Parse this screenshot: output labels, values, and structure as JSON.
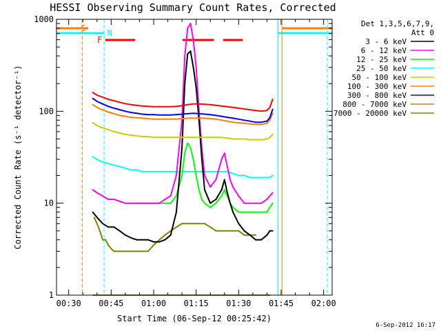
{
  "chart_data": {
    "type": "line",
    "title": "HESSI Observing Summary Count Rates, Corrected",
    "xlabel": "Start Time (06-Sep-12 00:25:42)",
    "ylabel": "Corrected Count Rate (s⁻¹ detector⁻¹)",
    "yscale": "log",
    "ylim": [
      1,
      1000
    ],
    "y_ticks": [
      1,
      10,
      100,
      1000
    ],
    "y_tick_labels": [
      "1",
      "10",
      "100",
      "1000"
    ],
    "xlim": [
      25.7,
      123
    ],
    "x_ticks": [
      30,
      45,
      60,
      75,
      90,
      105,
      120
    ],
    "x_tick_labels": [
      "00:30",
      "00:45",
      "01:00",
      "01:15",
      "01:30",
      "01:45",
      "02:00"
    ],
    "x_unit": "minutes after 00:00 UT, 06-Sep-12",
    "legend_header": [
      "Det 1,3,5,6,7,9,",
      "Att 0"
    ],
    "legend_position": "right",
    "series": [
      {
        "name": "3 - 6 keV",
        "color": "#000000",
        "x": [
          38.5,
          40,
          42,
          44,
          46,
          48,
          50,
          52,
          54,
          56,
          58,
          60,
          62,
          64,
          66,
          68,
          70,
          71,
          72,
          73,
          74,
          75,
          76,
          77,
          78,
          80,
          82,
          84,
          85,
          86,
          87,
          88,
          90,
          92,
          94,
          96,
          98,
          100,
          101,
          102
        ],
        "y": [
          8,
          7,
          6,
          5.5,
          5.5,
          5,
          4.5,
          4.2,
          4,
          4,
          4,
          3.8,
          3.8,
          4,
          4.5,
          8,
          40,
          200,
          420,
          450,
          300,
          180,
          80,
          30,
          14,
          10,
          11,
          14,
          18,
          13,
          10,
          8,
          6,
          5,
          4.5,
          4,
          4,
          4.5,
          5,
          5
        ]
      },
      {
        "name": "6 - 12 keV",
        "color": "#ff00ff",
        "x": [
          38.5,
          40,
          42,
          44,
          46,
          48,
          50,
          52,
          54,
          56,
          58,
          60,
          62,
          64,
          66,
          68,
          70,
          71,
          72,
          73,
          74,
          75,
          76,
          77,
          78,
          80,
          82,
          84,
          85,
          86,
          87,
          88,
          90,
          92,
          94,
          96,
          98,
          100,
          101,
          102
        ],
        "y": [
          14,
          13,
          12,
          11,
          11,
          10.5,
          10,
          10,
          10,
          10,
          10,
          10,
          10,
          11,
          12,
          20,
          80,
          400,
          800,
          900,
          600,
          300,
          100,
          40,
          20,
          15,
          18,
          30,
          35,
          25,
          18,
          15,
          12,
          10,
          10,
          10,
          10,
          11,
          12,
          13
        ]
      },
      {
        "name": "12 - 25 keV",
        "color": "#00ff00",
        "x": [
          38.5,
          40,
          42,
          44,
          46,
          48,
          50,
          52,
          54,
          56,
          58,
          60,
          62,
          64,
          66,
          68,
          70,
          71,
          72,
          73,
          74,
          75,
          76,
          77,
          78,
          80,
          82,
          84,
          85,
          86,
          87,
          88,
          90,
          92,
          94,
          96,
          98,
          100,
          101,
          102
        ],
        "y": [
          14,
          13,
          12,
          11,
          11,
          10.5,
          10,
          10,
          10,
          10,
          10,
          10,
          10,
          10,
          10,
          12,
          20,
          35,
          45,
          40,
          30,
          20,
          14,
          11,
          10,
          9,
          10,
          12,
          14,
          12,
          10,
          9,
          8,
          8,
          8,
          8,
          8,
          8,
          9,
          10
        ]
      },
      {
        "name": "25 - 50 keV",
        "color": "#00ffff",
        "x": [
          38.5,
          40,
          42,
          44,
          46,
          48,
          50,
          52,
          54,
          56,
          58,
          60,
          62,
          64,
          66,
          68,
          70,
          72,
          74,
          76,
          78,
          80,
          82,
          84,
          86,
          88,
          90,
          92,
          94,
          96,
          98,
          100,
          101,
          102
        ],
        "y": [
          32,
          30,
          28,
          27,
          26,
          25,
          24,
          23,
          23,
          22,
          22,
          22,
          22,
          22,
          22,
          22,
          22,
          22,
          22,
          22,
          22,
          22,
          22,
          22,
          22,
          21,
          20,
          20,
          19,
          19,
          19,
          19,
          19,
          20
        ]
      },
      {
        "name": "50 - 100 keV",
        "color": "#cccc00",
        "x": [
          38.5,
          40,
          42,
          44,
          46,
          48,
          50,
          52,
          54,
          56,
          58,
          60,
          62,
          64,
          66,
          68,
          70,
          72,
          74,
          76,
          78,
          80,
          82,
          84,
          86,
          88,
          90,
          92,
          94,
          96,
          98,
          100,
          101,
          102
        ],
        "y": [
          75,
          70,
          66,
          63,
          60,
          58,
          56,
          55,
          54,
          53,
          53,
          52,
          52,
          52,
          52,
          52,
          52,
          52,
          52,
          52,
          52,
          52,
          52,
          52,
          51,
          50,
          50,
          50,
          49,
          49,
          49,
          50,
          52,
          56
        ]
      },
      {
        "name": "100 - 300 keV",
        "color": "#ff7f00",
        "x": [
          38.5,
          40,
          42,
          44,
          46,
          48,
          50,
          52,
          54,
          56,
          58,
          60,
          62,
          64,
          66,
          68,
          70,
          72,
          74,
          76,
          78,
          80,
          82,
          84,
          86,
          88,
          90,
          92,
          94,
          96,
          98,
          100,
          101,
          102
        ],
        "y": [
          118,
          110,
          103,
          98,
          94,
          90,
          88,
          86,
          85,
          84,
          83,
          82,
          82,
          82,
          82,
          82,
          83,
          84,
          84,
          84,
          84,
          83,
          82,
          80,
          78,
          76,
          75,
          74,
          73,
          72,
          72,
          74,
          80,
          95
        ]
      },
      {
        "name": "300 - 800 keV",
        "color": "#0000ff",
        "x": [
          38.5,
          40,
          42,
          44,
          46,
          48,
          50,
          52,
          54,
          56,
          58,
          60,
          62,
          64,
          66,
          68,
          70,
          72,
          74,
          76,
          78,
          80,
          82,
          84,
          86,
          88,
          90,
          92,
          94,
          96,
          98,
          100,
          101,
          102
        ],
        "y": [
          138,
          128,
          120,
          113,
          108,
          104,
          100,
          97,
          95,
          93,
          92,
          92,
          91,
          91,
          91,
          92,
          93,
          94,
          95,
          94,
          93,
          92,
          90,
          88,
          86,
          84,
          82,
          80,
          78,
          76,
          76,
          78,
          85,
          105
        ]
      },
      {
        "name": "800 - 7000 keV",
        "color": "#cc7a29",
        "x": [
          38.5,
          39,
          40,
          44,
          48,
          52,
          56,
          60,
          64,
          68,
          72,
          76,
          80,
          84,
          88,
          92,
          96,
          99,
          100,
          101
        ],
        "y": [
          1,
          1,
          1,
          1,
          1,
          1,
          1,
          1,
          1,
          1,
          1,
          1,
          1,
          1,
          1,
          1,
          1,
          1,
          1,
          1
        ]
      },
      {
        "name": "7000 - 20000 keV",
        "color": "#808000",
        "x": [
          39,
          40,
          41,
          42,
          43,
          44,
          45,
          46,
          48,
          50,
          52,
          54,
          56,
          58,
          60,
          62,
          64,
          66,
          68,
          70,
          72,
          74,
          76,
          78,
          80,
          82,
          84,
          86,
          88,
          90,
          92,
          94,
          96
        ],
        "y": [
          7,
          6,
          5,
          4,
          4,
          3.5,
          3.2,
          3,
          3,
          3,
          3,
          3,
          3,
          3,
          3.5,
          4,
          4.5,
          5,
          5.5,
          6,
          6,
          6,
          6,
          6,
          5.5,
          5,
          5,
          5,
          5,
          5,
          4.5,
          4.5,
          4.5
        ]
      },
      {
        "name": "",
        "color": "#ff0000",
        "x": [
          38.5,
          40,
          42,
          44,
          46,
          48,
          50,
          52,
          54,
          56,
          58,
          60,
          62,
          64,
          66,
          68,
          70,
          72,
          74,
          76,
          78,
          80,
          82,
          84,
          86,
          88,
          90,
          92,
          94,
          96,
          98,
          100,
          101,
          102
        ],
        "y": [
          160,
          150,
          142,
          135,
          130,
          125,
          121,
          118,
          116,
          114,
          113,
          112,
          112,
          112,
          112,
          113,
          115,
          118,
          120,
          120,
          119,
          118,
          116,
          114,
          112,
          110,
          108,
          106,
          104,
          102,
          100,
          102,
          110,
          135
        ]
      }
    ],
    "annotations": {
      "S": {
        "label": "S",
        "x_start": 25.7,
        "x_end": 36.9,
        "resume": 105.5,
        "color": "#ff7f00"
      },
      "N": {
        "label": "N",
        "x_start": 25.7,
        "x_end": 42.5,
        "resume": 104,
        "color": "#00ffff"
      },
      "F": {
        "label": "F",
        "color": "#ff0000",
        "segments": [
          [
            42.9,
            53.5
          ],
          [
            70.2,
            81.3
          ],
          [
            84.5,
            91.5
          ]
        ]
      }
    },
    "vertical_markers": [
      {
        "x": 34.8,
        "color": "#ff7f00",
        "dashed": true
      },
      {
        "x": 42.5,
        "color": "#00ffff",
        "dashed": true
      },
      {
        "x": 103.9,
        "color": "#00ffff",
        "dashed": false
      },
      {
        "x": 105.3,
        "color": "#ff7f00",
        "dashed": false
      },
      {
        "x": 121.3,
        "color": "#00ffff",
        "dashed": true
      }
    ],
    "footer_date": "6-Sep-2012 16:17"
  }
}
